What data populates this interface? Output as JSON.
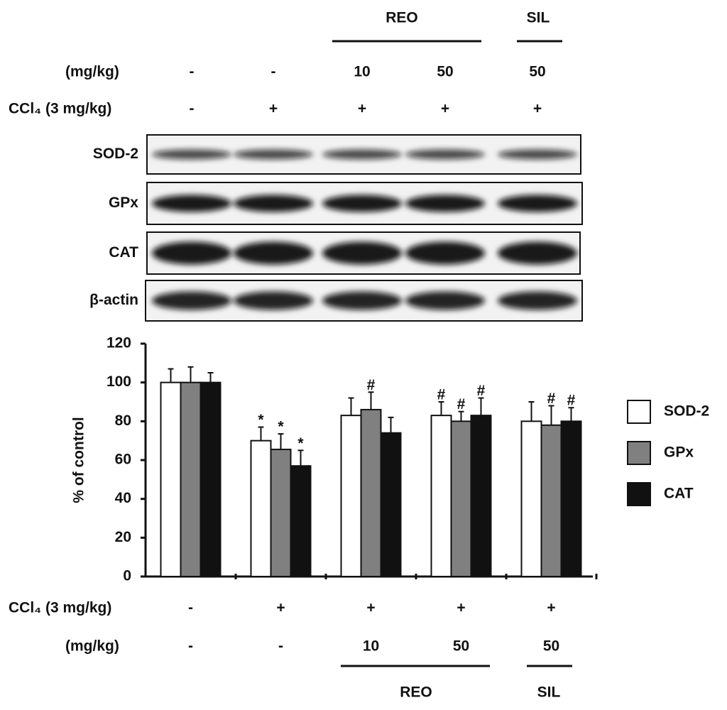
{
  "blot": {
    "groups": [
      {
        "label": "REO"
      },
      {
        "label": "SIL"
      }
    ],
    "dose": {
      "label": "(mg/kg)",
      "values": [
        "-",
        "-",
        "10",
        "50",
        "50"
      ]
    },
    "ccl4": {
      "label": "CCl₄ (3 mg/kg)",
      "values": [
        "-",
        "+",
        "+",
        "+",
        "+"
      ]
    },
    "proteins": [
      "SOD-2",
      "GPx",
      "CAT",
      "β-actin"
    ]
  },
  "chart_data": {
    "type": "bar",
    "ylabel": "% of control",
    "categories": [
      null,
      null,
      null,
      null,
      null
    ],
    "x_rows": [
      {
        "label": "CCl₄ (3 mg/kg)",
        "values": [
          "-",
          "+",
          "+",
          "+",
          "+"
        ]
      },
      {
        "label": "(mg/kg)",
        "values": [
          "-",
          "-",
          "10",
          "50",
          "50"
        ]
      }
    ],
    "x_groups": [
      {
        "label": "REO"
      },
      {
        "label": "SIL"
      }
    ],
    "series": [
      {
        "name": "SOD-2",
        "color": "#ffffff",
        "values": [
          100,
          70,
          83,
          83,
          80
        ],
        "errors": [
          7,
          7,
          9,
          7,
          10
        ],
        "annotations": [
          null,
          "*",
          null,
          "#",
          null
        ]
      },
      {
        "name": "GPx",
        "color": "#808080",
        "values": [
          100,
          65.5,
          86,
          80,
          78
        ],
        "errors": [
          8,
          8,
          9,
          5,
          10
        ],
        "annotations": [
          null,
          "*",
          "#",
          "#",
          "#"
        ]
      },
      {
        "name": "CAT",
        "color": "#111111",
        "values": [
          100,
          57,
          74,
          83,
          80
        ],
        "errors": [
          5,
          8,
          8,
          9,
          7
        ],
        "annotations": [
          null,
          "*",
          null,
          "#",
          "#"
        ]
      }
    ],
    "ylim": [
      0,
      120
    ],
    "yticks": [
      0,
      20,
      40,
      60,
      80,
      100,
      120
    ],
    "legend": "right"
  }
}
